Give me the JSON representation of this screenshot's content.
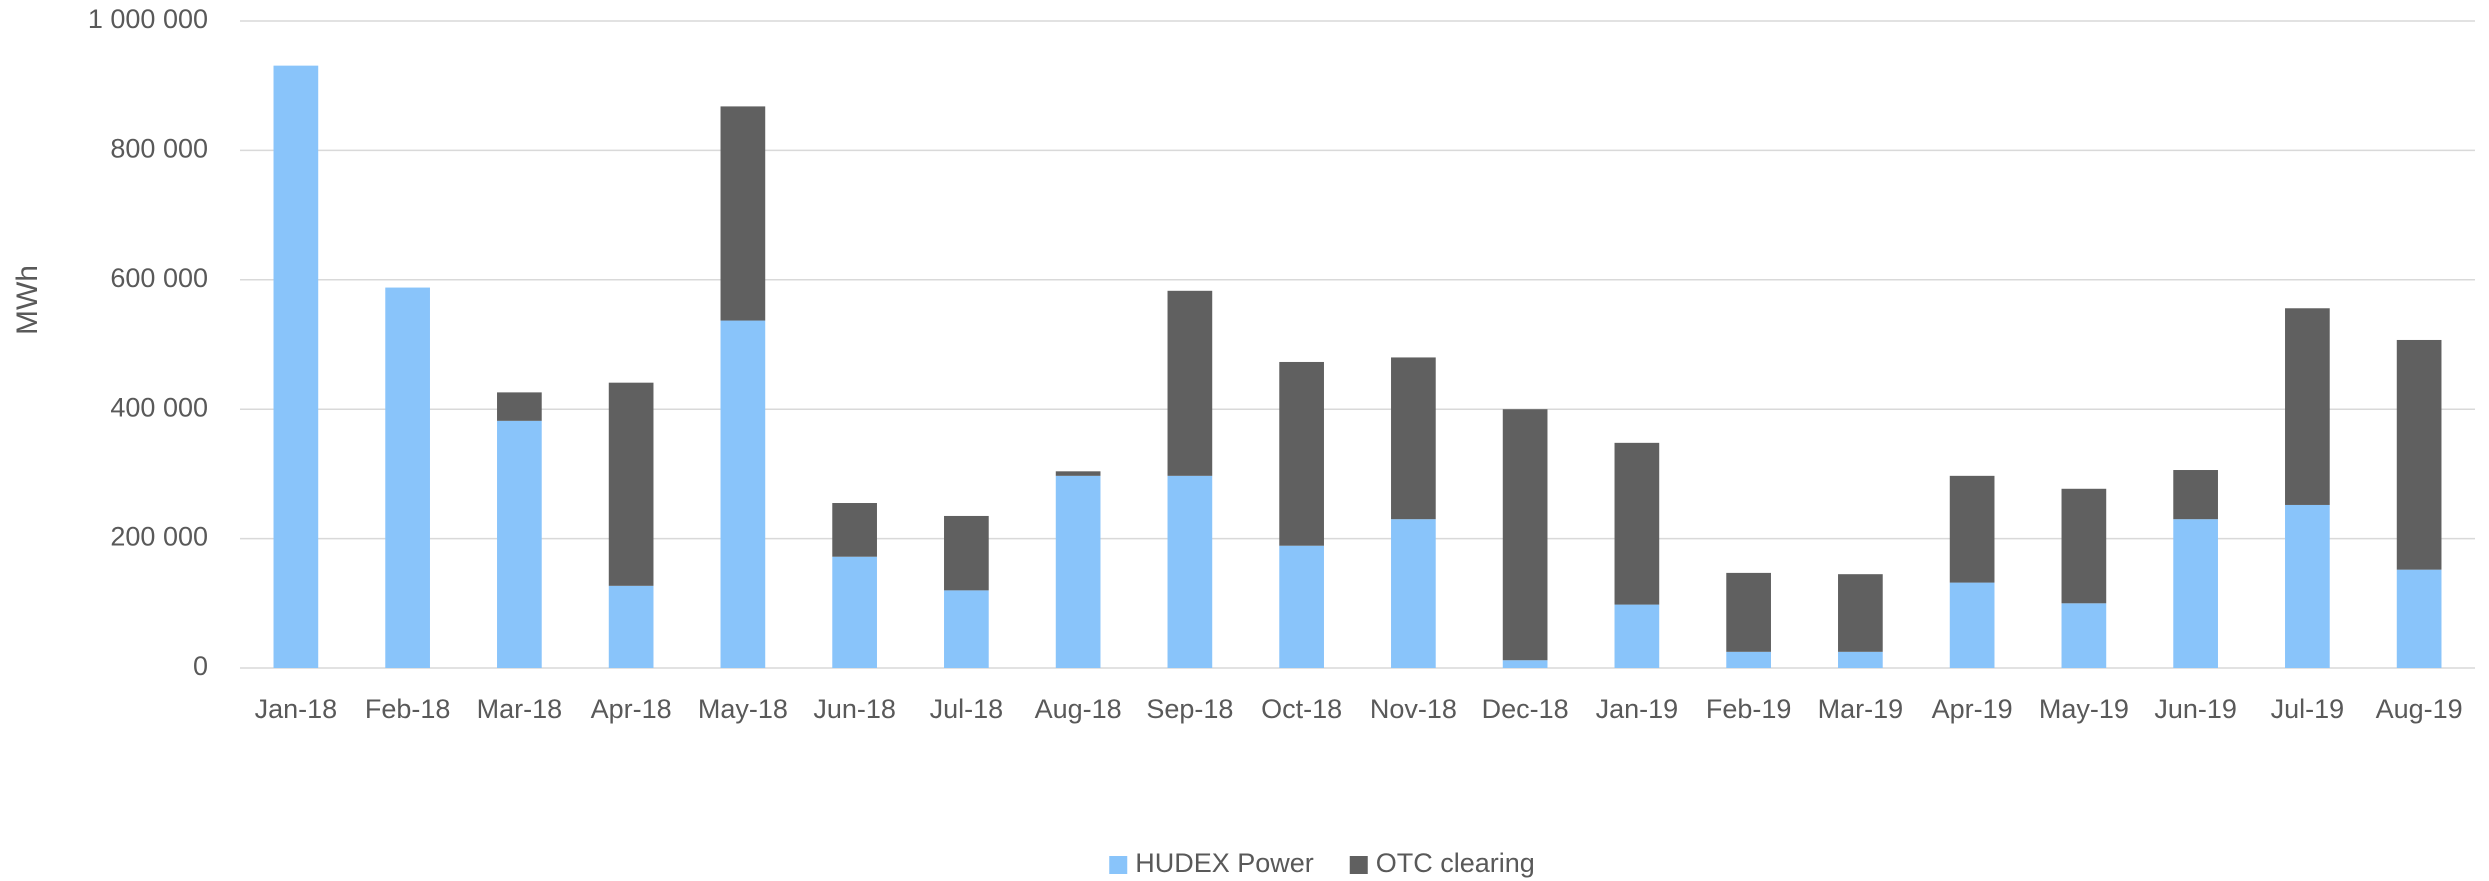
{
  "chart_data": {
    "type": "stacked_bar",
    "y_label": "MWh",
    "categories": [
      "Jan-18",
      "Feb-18",
      "Mar-18",
      "Apr-18",
      "May-18",
      "Jun-18",
      "Jul-18",
      "Aug-18",
      "Sep-18",
      "Oct-18",
      "Nov-18",
      "Dec-18",
      "Jan-19",
      "Feb-19",
      "Mar-19",
      "Apr-19",
      "May-19",
      "Jun-19",
      "Jul-19",
      "Aug-19"
    ],
    "series": [
      {
        "name": "HUDEX Power",
        "color": "#89c4fa",
        "values": [
          931000,
          588000,
          382000,
          127000,
          537000,
          172000,
          120000,
          297000,
          297000,
          189000,
          230000,
          12000,
          98000,
          25000,
          25000,
          132000,
          100000,
          230000,
          252000,
          152000
        ]
      },
      {
        "name": "OTC clearing",
        "color": "#606060",
        "values": [
          0,
          0,
          44000,
          314000,
          331000,
          83000,
          115000,
          7000,
          286000,
          284000,
          250000,
          388000,
          250000,
          122000,
          120000,
          165000,
          177000,
          76000,
          304000,
          355000
        ]
      }
    ],
    "ylim": [
      0,
      1000000
    ],
    "yticks": [
      0,
      {
        "value": 200000,
        "label": "200 000"
      },
      {
        "value": 400000,
        "label": "400 000"
      },
      {
        "value": 600000,
        "label": "600 000"
      },
      {
        "value": 800000,
        "label": "800 000"
      },
      {
        "value": 1000000,
        "label": "1 000 000"
      }
    ],
    "grid": true,
    "legend": "bottom"
  }
}
